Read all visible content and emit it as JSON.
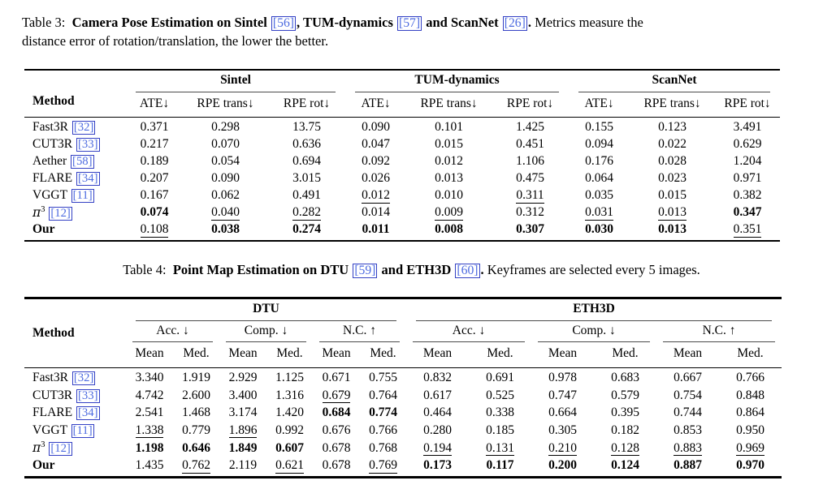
{
  "colors": {
    "page_background": "#ffffff",
    "text": "#000000",
    "citation_text": "#4d6be0",
    "citation_border": "#3340c4",
    "heavy_rule": "#000000",
    "cmidrule": "#4a4a4a"
  },
  "caption_table3": {
    "segments": [
      {
        "t": "Table 3:  ",
        "s": "r"
      },
      {
        "t": "Camera Pose Estimation on Sintel ",
        "s": "b"
      },
      {
        "t": "[56]",
        "s": "c"
      },
      {
        "t": ", TUM-dynamics ",
        "s": "b"
      },
      {
        "t": "[57]",
        "s": "c"
      },
      {
        "t": " and ScanNet ",
        "s": "b"
      },
      {
        "t": "[26]",
        "s": "c"
      },
      {
        "t": ".",
        "s": "b"
      },
      {
        "t": " Metrics measure the",
        "s": "r"
      },
      {
        "br": true
      },
      {
        "t": "distance error of rotation/translation, the lower the better.",
        "s": "r"
      }
    ]
  },
  "caption_table4": {
    "segments": [
      {
        "t": "Table 4:  ",
        "s": "r"
      },
      {
        "t": "Point Map Estimation on DTU ",
        "s": "b"
      },
      {
        "t": "[59]",
        "s": "c"
      },
      {
        "t": " and ETH3D ",
        "s": "b"
      },
      {
        "t": "[60]",
        "s": "c"
      },
      {
        "t": ".",
        "s": "b"
      },
      {
        "t": " Keyframes are selected every 5 images.",
        "s": "r"
      }
    ]
  },
  "table3": {
    "method_header": "Method",
    "groups": [
      {
        "label": "Sintel",
        "columns": [
          "ATE↓",
          "RPE trans↓",
          "RPE rot↓"
        ]
      },
      {
        "label": "TUM-dynamics",
        "columns": [
          "ATE↓",
          "RPE trans↓",
          "RPE rot↓"
        ]
      },
      {
        "label": "ScanNet",
        "columns": [
          "ATE↓",
          "RPE trans↓",
          "RPE rot↓"
        ]
      }
    ],
    "rows": [
      {
        "method": {
          "name": "Fast3R",
          "cite": "[32]"
        },
        "values": [
          {
            "v": "0.371"
          },
          {
            "v": "0.298"
          },
          {
            "v": "13.75"
          },
          {
            "v": "0.090"
          },
          {
            "v": "0.101"
          },
          {
            "v": "1.425"
          },
          {
            "v": "0.155"
          },
          {
            "v": "0.123"
          },
          {
            "v": "3.491"
          }
        ]
      },
      {
        "method": {
          "name": "CUT3R",
          "cite": "[33]"
        },
        "values": [
          {
            "v": "0.217"
          },
          {
            "v": "0.070"
          },
          {
            "v": "0.636"
          },
          {
            "v": "0.047"
          },
          {
            "v": "0.015"
          },
          {
            "v": "0.451"
          },
          {
            "v": "0.094"
          },
          {
            "v": "0.022"
          },
          {
            "v": "0.629"
          }
        ]
      },
      {
        "method": {
          "name": "Aether",
          "cite": "[58]"
        },
        "values": [
          {
            "v": "0.189"
          },
          {
            "v": "0.054"
          },
          {
            "v": "0.694"
          },
          {
            "v": "0.092"
          },
          {
            "v": "0.012"
          },
          {
            "v": "1.106"
          },
          {
            "v": "0.176"
          },
          {
            "v": "0.028"
          },
          {
            "v": "1.204"
          }
        ]
      },
      {
        "method": {
          "name": "FLARE",
          "cite": "[34]"
        },
        "values": [
          {
            "v": "0.207"
          },
          {
            "v": "0.090"
          },
          {
            "v": "3.015"
          },
          {
            "v": "0.026"
          },
          {
            "v": "0.013"
          },
          {
            "v": "0.475"
          },
          {
            "v": "0.064"
          },
          {
            "v": "0.023"
          },
          {
            "v": "0.971"
          }
        ]
      },
      {
        "method": {
          "name": "VGGT",
          "cite": "[11]"
        },
        "values": [
          {
            "v": "0.167"
          },
          {
            "v": "0.062"
          },
          {
            "v": "0.491"
          },
          {
            "v": "0.012",
            "s": "u"
          },
          {
            "v": "0.010"
          },
          {
            "v": "0.311",
            "s": "u"
          },
          {
            "v": "0.035"
          },
          {
            "v": "0.015"
          },
          {
            "v": "0.382"
          }
        ]
      },
      {
        "method": {
          "name": "π",
          "sup": "3",
          "cite": "[12]"
        },
        "values": [
          {
            "v": "0.074",
            "s": "b"
          },
          {
            "v": "0.040",
            "s": "u"
          },
          {
            "v": "0.282",
            "s": "u"
          },
          {
            "v": "0.014"
          },
          {
            "v": "0.009",
            "s": "u"
          },
          {
            "v": "0.312"
          },
          {
            "v": "0.031",
            "s": "u"
          },
          {
            "v": "0.013",
            "s": "u"
          },
          {
            "v": "0.347",
            "s": "b"
          }
        ]
      },
      {
        "method": {
          "name": "Our",
          "bold": true
        },
        "values": [
          {
            "v": "0.108",
            "s": "u"
          },
          {
            "v": "0.038",
            "s": "b"
          },
          {
            "v": "0.274",
            "s": "b"
          },
          {
            "v": "0.011",
            "s": "b"
          },
          {
            "v": "0.008",
            "s": "b"
          },
          {
            "v": "0.307",
            "s": "b"
          },
          {
            "v": "0.030",
            "s": "b"
          },
          {
            "v": "0.013",
            "s": "b"
          },
          {
            "v": "0.351",
            "s": "u"
          }
        ]
      }
    ]
  },
  "table4": {
    "method_header": "Method",
    "sub_columns": [
      "Mean",
      "Med."
    ],
    "groups": [
      {
        "label": "DTU",
        "metrics": [
          "Acc. ↓",
          "Comp. ↓",
          "N.C. ↑"
        ]
      },
      {
        "label": "ETH3D",
        "metrics": [
          "Acc. ↓",
          "Comp. ↓",
          "N.C. ↑"
        ]
      }
    ],
    "rows": [
      {
        "method": {
          "name": "Fast3R",
          "cite": "[32]"
        },
        "values": [
          {
            "v": "3.340"
          },
          {
            "v": "1.919"
          },
          {
            "v": "2.929"
          },
          {
            "v": "1.125"
          },
          {
            "v": "0.671"
          },
          {
            "v": "0.755"
          },
          {
            "v": "0.832"
          },
          {
            "v": "0.691"
          },
          {
            "v": "0.978"
          },
          {
            "v": "0.683"
          },
          {
            "v": "0.667"
          },
          {
            "v": "0.766"
          }
        ]
      },
      {
        "method": {
          "name": "CUT3R",
          "cite": "[33]"
        },
        "values": [
          {
            "v": "4.742"
          },
          {
            "v": "2.600"
          },
          {
            "v": "3.400"
          },
          {
            "v": "1.316"
          },
          {
            "v": "0.679",
            "s": "u"
          },
          {
            "v": "0.764"
          },
          {
            "v": "0.617"
          },
          {
            "v": "0.525"
          },
          {
            "v": "0.747"
          },
          {
            "v": "0.579"
          },
          {
            "v": "0.754"
          },
          {
            "v": "0.848"
          }
        ]
      },
      {
        "method": {
          "name": "FLARE",
          "cite": "[34]"
        },
        "values": [
          {
            "v": "2.541"
          },
          {
            "v": "1.468"
          },
          {
            "v": "3.174"
          },
          {
            "v": "1.420"
          },
          {
            "v": "0.684",
            "s": "b"
          },
          {
            "v": "0.774",
            "s": "b"
          },
          {
            "v": "0.464"
          },
          {
            "v": "0.338"
          },
          {
            "v": "0.664"
          },
          {
            "v": "0.395"
          },
          {
            "v": "0.744"
          },
          {
            "v": "0.864"
          }
        ]
      },
      {
        "method": {
          "name": "VGGT",
          "cite": "[11]"
        },
        "values": [
          {
            "v": "1.338",
            "s": "u"
          },
          {
            "v": "0.779"
          },
          {
            "v": "1.896",
            "s": "u"
          },
          {
            "v": "0.992"
          },
          {
            "v": "0.676"
          },
          {
            "v": "0.766"
          },
          {
            "v": "0.280"
          },
          {
            "v": "0.185"
          },
          {
            "v": "0.305"
          },
          {
            "v": "0.182"
          },
          {
            "v": "0.853"
          },
          {
            "v": "0.950"
          }
        ]
      },
      {
        "method": {
          "name": "π",
          "sup": "3",
          "cite": "[12]"
        },
        "values": [
          {
            "v": "1.198",
            "s": "b"
          },
          {
            "v": "0.646",
            "s": "b"
          },
          {
            "v": "1.849",
            "s": "b"
          },
          {
            "v": "0.607",
            "s": "b"
          },
          {
            "v": "0.678"
          },
          {
            "v": "0.768"
          },
          {
            "v": "0.194",
            "s": "u"
          },
          {
            "v": "0.131",
            "s": "u"
          },
          {
            "v": "0.210",
            "s": "u"
          },
          {
            "v": "0.128",
            "s": "u"
          },
          {
            "v": "0.883",
            "s": "u"
          },
          {
            "v": "0.969",
            "s": "u"
          }
        ]
      },
      {
        "method": {
          "name": "Our",
          "bold": true
        },
        "values": [
          {
            "v": "1.435"
          },
          {
            "v": "0.762",
            "s": "u"
          },
          {
            "v": "2.119"
          },
          {
            "v": "0.621",
            "s": "u"
          },
          {
            "v": "0.678"
          },
          {
            "v": "0.769",
            "s": "u"
          },
          {
            "v": "0.173",
            "s": "b"
          },
          {
            "v": "0.117",
            "s": "b"
          },
          {
            "v": "0.200",
            "s": "b"
          },
          {
            "v": "0.124",
            "s": "b"
          },
          {
            "v": "0.887",
            "s": "b"
          },
          {
            "v": "0.970",
            "s": "b"
          }
        ]
      }
    ]
  }
}
